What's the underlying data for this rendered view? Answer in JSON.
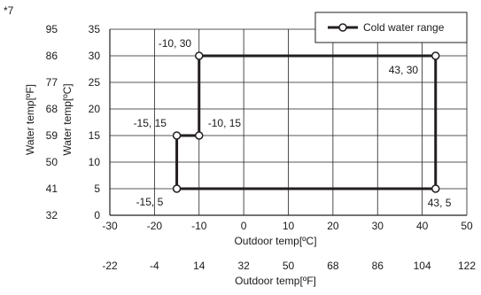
{
  "note": "*7",
  "chart_data": {
    "type": "line",
    "xlabel": "Outdoor temp[ºC]",
    "xlabel_secondary": "Outdoor temp[ºF]",
    "ylabel": "Water temp[ºC]",
    "ylabel_secondary": "Water temp[ºF]",
    "xlim": [
      -30,
      50
    ],
    "ylim": [
      0,
      35
    ],
    "x_ticks": [
      -30,
      -20,
      -10,
      0,
      10,
      20,
      30,
      40,
      50
    ],
    "y_ticks": [
      0,
      5,
      10,
      15,
      20,
      25,
      30,
      35
    ],
    "x_ticks_secondary": [
      "-22",
      "-4",
      "14",
      "32",
      "50",
      "68",
      "86",
      "104",
      "122"
    ],
    "y_ticks_secondary": [
      "32",
      "41",
      "50",
      "59",
      "68",
      "77",
      "86",
      "95"
    ],
    "grid": true,
    "legend_position": "top-right",
    "series": [
      {
        "name": "Cold water range",
        "closed": true,
        "points": [
          {
            "x": -10,
            "y": 30,
            "label": "-10, 30"
          },
          {
            "x": 43,
            "y": 30,
            "label": "43, 30"
          },
          {
            "x": 43,
            "y": 5,
            "label": "43, 5"
          },
          {
            "x": -15,
            "y": 5,
            "label": "-15, 5"
          },
          {
            "x": -15,
            "y": 15,
            "label": "-15, 15"
          },
          {
            "x": -10,
            "y": 15,
            "label": "-10, 15"
          }
        ]
      }
    ]
  },
  "colors": {
    "line": "#231f20",
    "grid": "#231f20",
    "marker_fill": "#ffffff"
  }
}
